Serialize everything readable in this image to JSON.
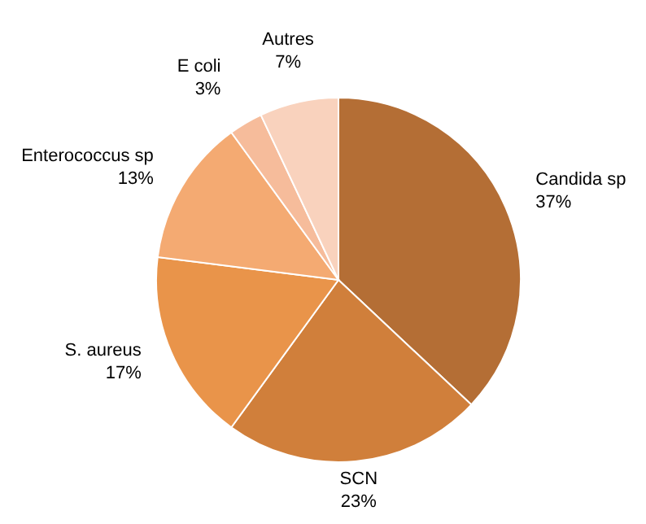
{
  "chart_data": {
    "type": "pie",
    "categories": [
      "Candida sp",
      "SCN",
      "S. aureus",
      "Enterococcus sp",
      "E coli",
      "Autres"
    ],
    "values": [
      37,
      23,
      17,
      13,
      3,
      7
    ],
    "colors": [
      "#b46e35",
      "#d07f3b",
      "#e9944a",
      "#f4aa72",
      "#f6bc9b",
      "#f9d2bd"
    ],
    "value_labels": [
      "37%",
      "23%",
      "17%",
      "13%",
      "3%",
      "7%"
    ]
  }
}
